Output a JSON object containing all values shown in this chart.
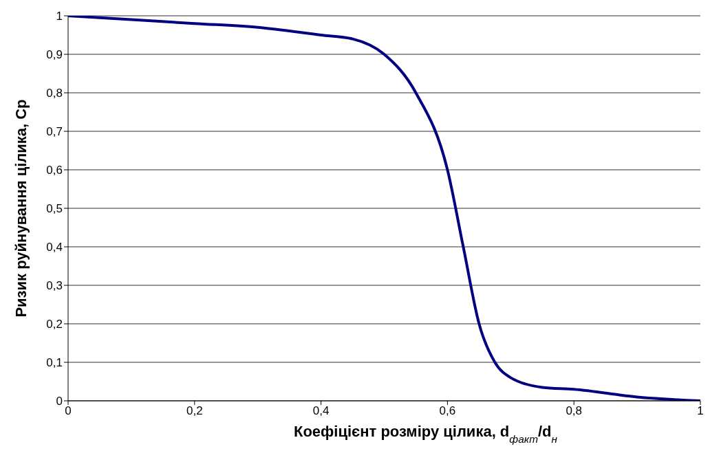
{
  "chart_data": {
    "type": "line",
    "xlabel": "Коефіцієнт розміру цілика, d$_{факт}$/d$_{н}$",
    "ylabel": "Ризик руйнування цілика, Ср",
    "x": [
      0,
      0.1,
      0.2,
      0.3,
      0.4,
      0.45,
      0.5,
      0.55,
      0.6,
      0.625,
      0.65,
      0.675,
      0.7,
      0.75,
      0.8,
      0.9,
      1
    ],
    "series": [
      {
        "color": "#000080",
        "values": [
          1,
          0.99,
          0.98,
          0.97,
          0.95,
          0.94,
          0.9,
          0.8,
          0.6,
          0.4,
          0.2,
          0.1,
          0.06,
          0.035,
          0.03,
          0.01,
          0
        ]
      }
    ],
    "xlim": [
      0,
      1
    ],
    "ylim": [
      0,
      1
    ],
    "xticks": [
      0,
      {
        "value": 0.2,
        "label": "0,2"
      },
      {
        "value": 0.4,
        "label": "0,4"
      },
      {
        "value": 0.6,
        "label": "0,6"
      },
      {
        "value": 0.8,
        "label": "0,8"
      },
      1
    ],
    "yticks": [
      0,
      {
        "value": 0.1,
        "label": "0,1"
      },
      {
        "value": 0.2,
        "label": "0,2"
      },
      {
        "value": 0.3,
        "label": "0,3"
      },
      {
        "value": 0.4,
        "label": "0,4"
      },
      {
        "value": 0.5,
        "label": "0,5"
      },
      {
        "value": 0.6,
        "label": "0,6"
      },
      {
        "value": 0.7,
        "label": "0,7"
      },
      {
        "value": 0.8,
        "label": "0,8"
      },
      {
        "value": 0.9,
        "label": "0,9"
      },
      1
    ],
    "grid": "y",
    "marker": "none",
    "line_style": "solid",
    "legend": false
  }
}
